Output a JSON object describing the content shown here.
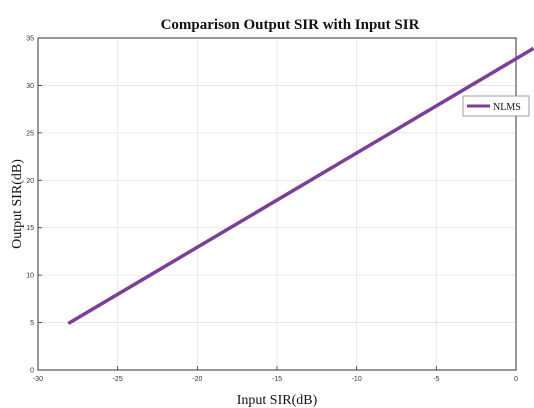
{
  "chart_data": {
    "type": "line",
    "title": "Comparison Output SIR  with Input SIR",
    "xlabel": "Input SIR(dB)",
    "ylabel": "Output SIR(dB)",
    "xlim": [
      -30,
      0
    ],
    "ylim": [
      0,
      35
    ],
    "xticks": [
      -30,
      -25,
      -20,
      -15,
      -10,
      -5,
      0
    ],
    "yticks": [
      0,
      5,
      10,
      15,
      20,
      25,
      30,
      35
    ],
    "xtick_labels": [
      "-30",
      "-25",
      "-20",
      "-15",
      "-10",
      "-5",
      "0"
    ],
    "ytick_labels": [
      "0",
      "5",
      "10",
      "15",
      "20",
      "25",
      "30",
      "35"
    ],
    "grid": true,
    "legend_position": "right",
    "series": [
      {
        "name": "NLMS",
        "color": "#7B3F98",
        "x": [
          -28.1,
          1.1
        ],
        "y": [
          4.9,
          33.9
        ]
      }
    ]
  }
}
